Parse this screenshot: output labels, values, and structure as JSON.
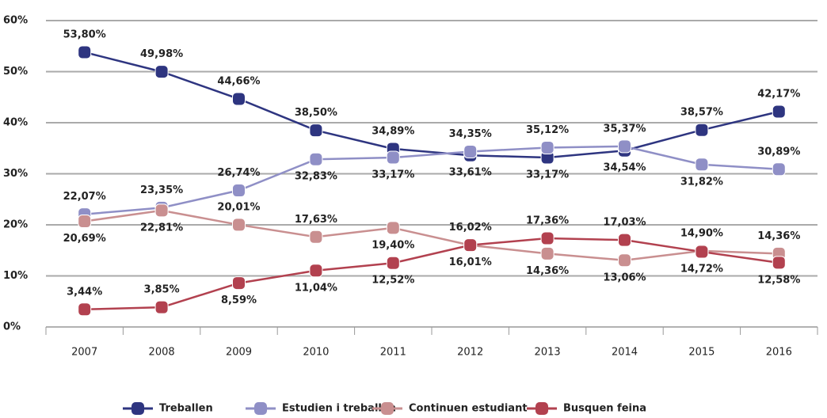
{
  "chart_data": {
    "type": "line",
    "categories": [
      "2007",
      "2008",
      "2009",
      "2010",
      "2011",
      "2012",
      "2013",
      "2014",
      "2015",
      "2016"
    ],
    "ylim": [
      0,
      60
    ],
    "yticks": [
      {
        "value": 0,
        "label": "0%"
      },
      {
        "value": 10,
        "label": "10%"
      },
      {
        "value": 20,
        "label": "20%"
      },
      {
        "value": 30,
        "label": "30%"
      },
      {
        "value": 40,
        "label": "40%"
      },
      {
        "value": 50,
        "label": "50%"
      },
      {
        "value": 60,
        "label": "60%"
      }
    ],
    "grid": true,
    "series": [
      {
        "name": "Treballen",
        "color": "#2e3580",
        "values": [
          53.8,
          49.98,
          44.66,
          38.5,
          34.89,
          33.61,
          33.17,
          34.54,
          38.57,
          42.17
        ],
        "value_labels": [
          "53,80%",
          "49,98%",
          "44,66%",
          "38,50%",
          "34,89%",
          "33,61%",
          "33,17%",
          "34,54%",
          "38,57%",
          "42,17%"
        ]
      },
      {
        "name": "Estudien i treballen",
        "color": "#8f8fc6",
        "values": [
          22.07,
          23.35,
          26.74,
          32.83,
          33.17,
          34.35,
          35.12,
          35.37,
          31.82,
          30.89
        ],
        "value_labels": [
          "22,07%",
          "23,35%",
          "26,74%",
          "32,83%",
          "33,17%",
          "34,35%",
          "35,12%",
          "35,37%",
          "31,82%",
          "30,89%"
        ]
      },
      {
        "name": "Continuen estudiant",
        "color": "#c98f90",
        "values": [
          20.69,
          22.81,
          20.01,
          17.63,
          19.4,
          16.01,
          14.36,
          13.06,
          14.9,
          14.36
        ],
        "value_labels": [
          "20,69%",
          "22,81%",
          "20,01%",
          "17,63%",
          "19,40%",
          "16,01%",
          "14,36%",
          "13,06%",
          "14,90%",
          "14,36%"
        ]
      },
      {
        "name": "Busquen feina",
        "color": "#b2414f",
        "values": [
          3.44,
          3.85,
          8.59,
          11.04,
          12.52,
          16.02,
          17.36,
          17.03,
          14.72,
          12.58
        ],
        "value_labels": [
          "3,44%",
          "3,85%",
          "8,59%",
          "11,04%",
          "12,52%",
          "16,02%",
          "17,36%",
          "17,03%",
          "14,72%",
          "12,58%"
        ]
      }
    ]
  }
}
